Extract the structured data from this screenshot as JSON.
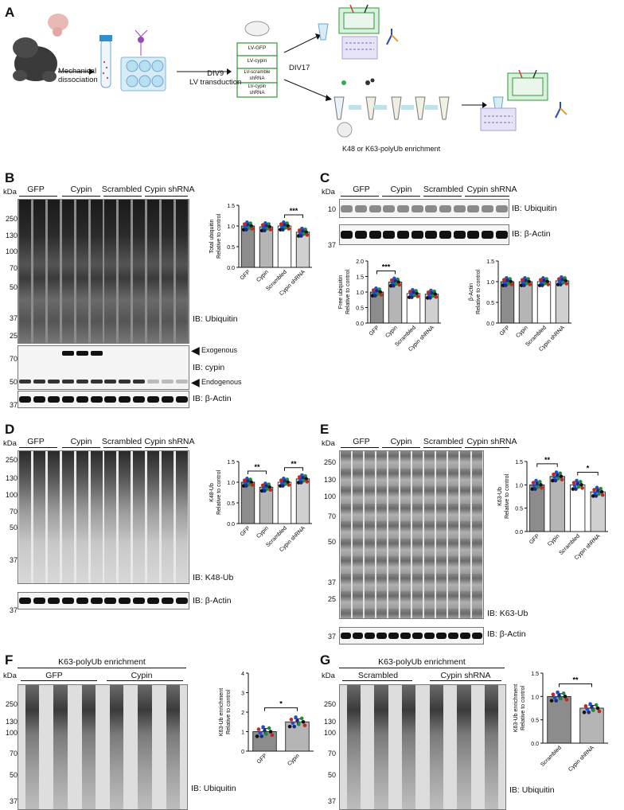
{
  "panels": {
    "A": "A",
    "B": "B",
    "C": "C",
    "D": "D",
    "E": "E",
    "F": "F",
    "G": "G"
  },
  "schematic": {
    "step1": "Mechanical\ndissociation",
    "step2": "DIV9\nLV transduction",
    "step3": "DIV17",
    "constructs": [
      "LV-GFP",
      "LV-cypin",
      "LV-scramble\nshRNA",
      "LV-cypin\nshRNA"
    ],
    "enrichment": "K48 or K63-polyUb enrichment"
  },
  "groups": {
    "four": [
      "GFP",
      "Cypin",
      "Scrambled",
      "Cypin shRNA"
    ],
    "two_f": [
      "GFP",
      "Cypin"
    ],
    "two_g": [
      "Scrambled",
      "Cypin shRNA"
    ],
    "enrich_header": "K63-polyUb enrichment"
  },
  "kda": "kDa",
  "blot_labels": {
    "b_ub": "IB: Ubiquitin",
    "b_cypin": "IB: cypin",
    "b_actin": "IB: β-Actin",
    "exogenous": "Exogenous",
    "endogenous": "Endogenous",
    "c_ub": "IB: Ubiquitin",
    "c_actin": "IB: β-Actin",
    "d_k48": "IB: K48-Ub",
    "d_actin": "IB: β-Actin",
    "e_k63": "IB: K63-Ub",
    "e_actin": "IB: β-Actin",
    "f_ub": "IB: Ubiquitin",
    "g_ub": "IB: Ubiquitin"
  },
  "markers": {
    "b_main": [
      "250",
      "130",
      "100",
      "70",
      "50",
      "37",
      "25"
    ],
    "b_cypin": [
      "70",
      "50"
    ],
    "b_actin": [
      "37"
    ],
    "c_ub": [
      "10"
    ],
    "c_actin": [
      "37"
    ],
    "d_main": [
      "250",
      "130",
      "100",
      "70",
      "50",
      "37"
    ],
    "d_actin": [
      "37"
    ],
    "e_main": [
      "250",
      "130",
      "100",
      "70",
      "50",
      "37",
      "25"
    ],
    "e_actin": [
      "37"
    ],
    "f_main": [
      "250",
      "130",
      "100",
      "70",
      "50",
      "37"
    ],
    "g_main": [
      "250",
      "130",
      "100",
      "70",
      "50",
      "37"
    ]
  },
  "chart_data": [
    {
      "id": "B",
      "type": "bar",
      "categories": [
        "GFP",
        "Cypin",
        "Scrambled",
        "Cypin shRNA"
      ],
      "values": [
        1.0,
        0.98,
        1.0,
        0.85
      ],
      "ylabel": "Total ubiquitin\nRelative to control",
      "ylim": [
        0,
        1.5
      ],
      "yticks": [
        "0.0",
        "0.5",
        "1.0",
        "1.5"
      ],
      "annotations": [
        {
          "pair": [
            2,
            3
          ],
          "text": "***"
        }
      ],
      "bar_colors": [
        "#8c8c8c",
        "#b5b5b5",
        "#ffffff",
        "#d0d0d0"
      ]
    },
    {
      "id": "C1",
      "type": "bar",
      "categories": [
        "GFP",
        "Cypin",
        "Scrambled",
        "Cypin shRNA"
      ],
      "values": [
        1.0,
        1.32,
        0.95,
        0.93
      ],
      "ylabel": "Free ubiquitin\nRelative to control",
      "ylim": [
        0,
        2.0
      ],
      "yticks": [
        "0.0",
        "0.5",
        "1.0",
        "1.5",
        "2.0"
      ],
      "annotations": [
        {
          "pair": [
            0,
            1
          ],
          "text": "***"
        }
      ],
      "bar_colors": [
        "#8c8c8c",
        "#b5b5b5",
        "#ffffff",
        "#d0d0d0"
      ]
    },
    {
      "id": "C2",
      "type": "bar",
      "categories": [
        "GFP",
        "Cypin",
        "Scrambled",
        "Cypin shRNA"
      ],
      "values": [
        1.0,
        1.0,
        1.0,
        1.02
      ],
      "ylabel": "β-Actin\nRelative to control",
      "ylim": [
        0,
        1.5
      ],
      "yticks": [
        "0.0",
        "0.5",
        "1.0",
        "1.5"
      ],
      "annotations": [],
      "bar_colors": [
        "#8c8c8c",
        "#b5b5b5",
        "#ffffff",
        "#d0d0d0"
      ]
    },
    {
      "id": "D",
      "type": "bar",
      "categories": [
        "GFP",
        "Cypin",
        "Scrambled",
        "Cypin shRNA"
      ],
      "values": [
        1.0,
        0.88,
        1.0,
        1.08
      ],
      "ylabel": "K48-Ub\nRelative to control",
      "ylim": [
        0,
        1.5
      ],
      "yticks": [
        "0.0",
        "0.5",
        "1.0",
        "1.5"
      ],
      "annotations": [
        {
          "pair": [
            0,
            1
          ],
          "text": "**"
        },
        {
          "pair": [
            2,
            3
          ],
          "text": "**"
        }
      ],
      "bar_colors": [
        "#8c8c8c",
        "#b5b5b5",
        "#ffffff",
        "#d0d0d0"
      ]
    },
    {
      "id": "E",
      "type": "bar",
      "categories": [
        "GFP",
        "Cypin",
        "Scrambled",
        "Cypin shRNA"
      ],
      "values": [
        1.0,
        1.18,
        1.0,
        0.85
      ],
      "ylabel": "K63-Ub\nRelative to control",
      "ylim": [
        0,
        1.5
      ],
      "yticks": [
        "0.0",
        "0.5",
        "1.0",
        "1.5"
      ],
      "annotations": [
        {
          "pair": [
            0,
            1
          ],
          "text": "**"
        },
        {
          "pair": [
            2,
            3
          ],
          "text": "*"
        }
      ],
      "bar_colors": [
        "#8c8c8c",
        "#b5b5b5",
        "#ffffff",
        "#d0d0d0"
      ]
    },
    {
      "id": "F",
      "type": "bar",
      "categories": [
        "GFP",
        "Cypin"
      ],
      "values": [
        1.0,
        1.5
      ],
      "ylabel": "K63-Ub enrichment\nRelative to control",
      "ylim": [
        0,
        4
      ],
      "yticks": [
        "0",
        "1",
        "2",
        "3",
        "4"
      ],
      "annotations": [
        {
          "pair": [
            0,
            1
          ],
          "text": "*"
        }
      ],
      "bar_colors": [
        "#8c8c8c",
        "#b5b5b5"
      ]
    },
    {
      "id": "G",
      "type": "bar",
      "categories": [
        "Scrambled",
        "Cypin shRNA"
      ],
      "values": [
        1.0,
        0.75
      ],
      "ylabel": "K63-Ub enrichment\nRelative to control",
      "ylim": [
        0,
        1.5
      ],
      "yticks": [
        "0.0",
        "0.5",
        "1.0",
        "1.5"
      ],
      "annotations": [
        {
          "pair": [
            0,
            1
          ],
          "text": "**"
        }
      ],
      "bar_colors": [
        "#8c8c8c",
        "#b5b5b5"
      ]
    }
  ],
  "dot_colors": [
    "#111111",
    "#1f4fd0",
    "#1f8a3a",
    "#c0281e",
    "#1a2a8a"
  ]
}
